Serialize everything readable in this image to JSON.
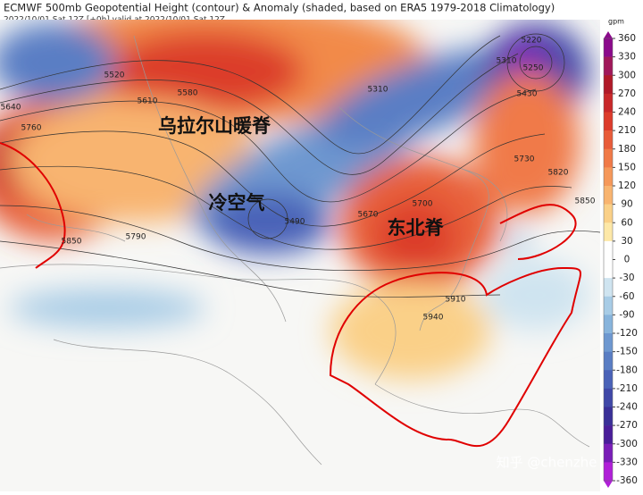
{
  "header": {
    "title": "ECMWF 500mb Geopotential Height (contour) & Anomaly (shaded, based on ERA5 1979-2018 Climatology)",
    "subtitle": "2022/10/01 Sat 12Z [+0h] valid at 2022/10/01 Sat 12Z"
  },
  "annotations": [
    "乌拉尔山暖脊",
    "冷空气",
    "东北脊"
  ],
  "contour_labels": [
    "5520",
    "5580",
    "5610",
    "5640",
    "5760",
    "5850",
    "5790",
    "5310",
    "5490",
    "5670",
    "5700",
    "5910",
    "5940",
    "5220",
    "5250",
    "5310",
    "5430",
    "5730",
    "5820",
    "5850"
  ],
  "watermark": "知乎 @chenzhe",
  "colorbar": {
    "unit": "gpm",
    "range": [
      -360,
      360
    ],
    "ticks": [
      360,
      330,
      300,
      270,
      240,
      210,
      180,
      150,
      120,
      90,
      60,
      30,
      0,
      -30,
      -60,
      -90,
      -120,
      -150,
      -180,
      -210,
      -240,
      -270,
      -300,
      -330,
      -360
    ],
    "colors": [
      "#8b0a8b",
      "#a0185a",
      "#b01a28",
      "#c8282a",
      "#dc3c2c",
      "#e85c3a",
      "#f07a48",
      "#f5985a",
      "#f8b470",
      "#fad088",
      "#fde8a8",
      "#ffffff",
      "#ffffff",
      "#cfe4f0",
      "#a8cce6",
      "#88b4dc",
      "#6e98d0",
      "#5a7ec4",
      "#4a62b8",
      "#4048a8",
      "#3a3098",
      "#4a1e9a",
      "#7a1eb8",
      "#b020d8"
    ]
  }
}
